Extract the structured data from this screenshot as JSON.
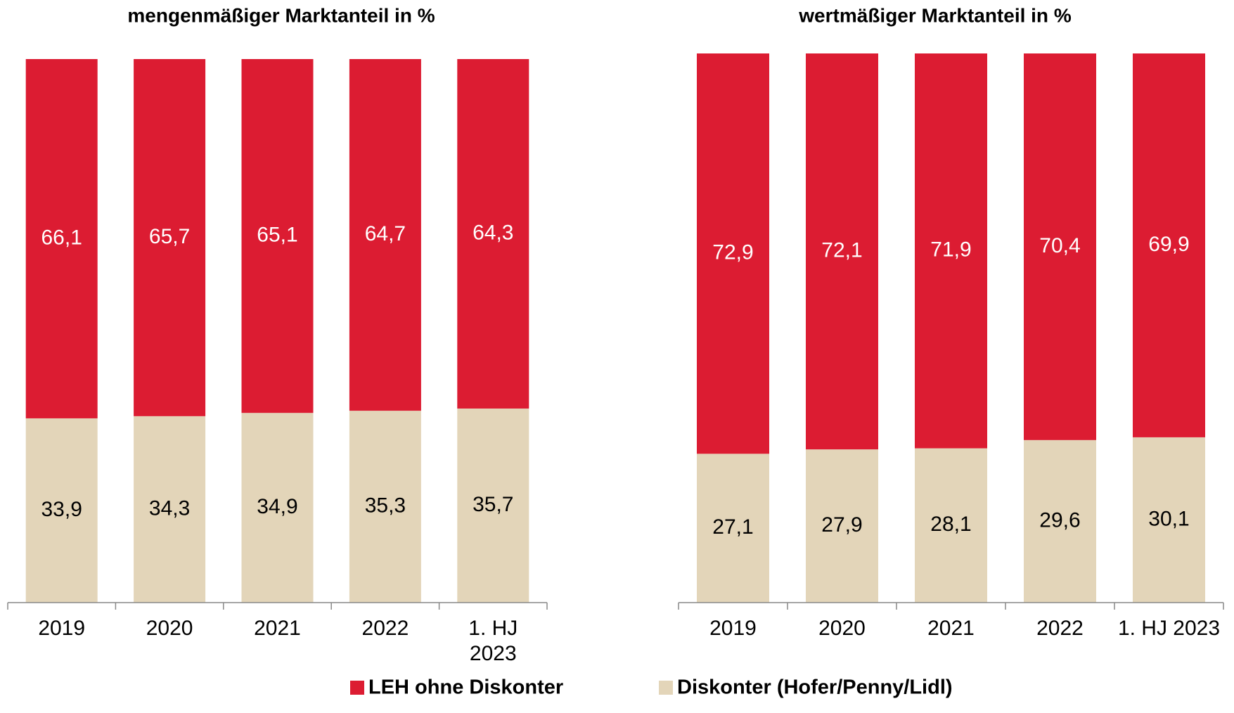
{
  "chart_data": [
    {
      "type": "stacked_bar",
      "title": "mengenmäßiger Marktanteil in %",
      "categories": [
        "2019",
        "2020",
        "2021",
        "2022",
        "1. HJ 2023"
      ],
      "ylim": [
        0,
        100
      ],
      "series": [
        {
          "name": "Diskonter (Hofer/Penny/Lidl)",
          "color": "#e3d5b9",
          "values": [
            33.9,
            34.3,
            34.9,
            35.3,
            35.7
          ],
          "value_labels": [
            "33,9",
            "34,3",
            "34,9",
            "35,3",
            "35,7"
          ]
        },
        {
          "name": "LEH ohne Diskonter",
          "color": "#dc1c32",
          "values": [
            66.1,
            65.7,
            65.1,
            64.7,
            64.3
          ],
          "value_labels": [
            "66,1",
            "65,7",
            "65,1",
            "64,7",
            "64,3"
          ]
        }
      ]
    },
    {
      "type": "stacked_bar",
      "title": "wertmäßiger Marktanteil in %",
      "categories": [
        "2019",
        "2020",
        "2021",
        "2022",
        "1. HJ 2023"
      ],
      "ylim": [
        0,
        100
      ],
      "series": [
        {
          "color": "#e3d5b9",
          "values": [
            27.1,
            27.9,
            28.1,
            29.6,
            30.1
          ],
          "value_labels": [
            "27,1",
            "27,9",
            "28,1",
            "29,6",
            "30,1"
          ]
        },
        {
          "color": "#dc1c32",
          "values": [
            72.9,
            72.1,
            71.9,
            70.4,
            69.9
          ],
          "value_labels": [
            "72,9",
            "72,1",
            "71,9",
            "70,4",
            "69,9"
          ]
        }
      ]
    }
  ]
}
